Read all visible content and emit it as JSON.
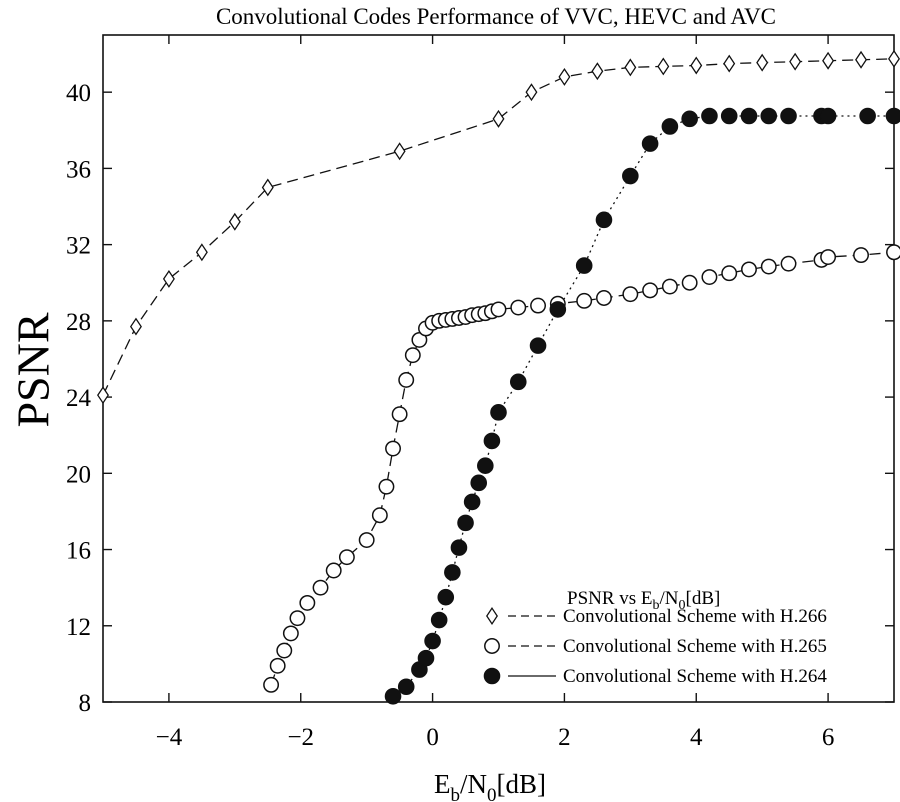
{
  "chart_data": {
    "type": "line",
    "title": "Convolutional Codes Performance of VVC, HEVC and AVC",
    "xlabel": {
      "main": "E",
      "sub1": "b",
      "mid": "/N",
      "sub2": "0",
      "tail": "[dB]"
    },
    "ylabel": "PSNR",
    "xlim": [
      -5,
      7
    ],
    "ylim": [
      8,
      43
    ],
    "xticks": [
      -4,
      -2,
      0,
      2,
      4,
      6
    ],
    "yticks": [
      8,
      12,
      16,
      20,
      24,
      28,
      32,
      36,
      40
    ],
    "legend": {
      "title": {
        "main": "PSNR vs E",
        "sub1": "b",
        "mid": "/N",
        "sub2": "0",
        "tail": "[dB]"
      },
      "position": "bottom-right"
    },
    "series": [
      {
        "name": "Convolutional Scheme with H.266",
        "marker": "diamond",
        "line": "dashed",
        "x": [
          -5.0,
          -4.5,
          -4.0,
          -3.5,
          -3.0,
          -2.5,
          -0.5,
          1.0,
          1.5,
          2.0,
          2.5,
          3.0,
          3.5,
          4.0,
          4.5,
          5.0,
          5.5,
          6.0,
          6.5,
          7.0
        ],
        "y": [
          24.1,
          27.7,
          30.2,
          31.6,
          33.2,
          35.0,
          36.9,
          38.6,
          40.0,
          40.8,
          41.1,
          41.3,
          41.35,
          41.4,
          41.5,
          41.55,
          41.6,
          41.65,
          41.7,
          41.75
        ]
      },
      {
        "name": "Convolutional Scheme with H.265",
        "marker": "circle-open",
        "line": "dashed",
        "x": [
          -2.45,
          -2.35,
          -2.25,
          -2.15,
          -2.05,
          -1.9,
          -1.7,
          -1.5,
          -1.3,
          -1.0,
          -0.8,
          -0.7,
          -0.6,
          -0.5,
          -0.4,
          -0.3,
          -0.2,
          -0.1,
          0.0,
          0.1,
          0.2,
          0.3,
          0.4,
          0.5,
          0.6,
          0.7,
          0.8,
          0.9,
          1.0,
          1.3,
          1.6,
          1.9,
          2.3,
          2.6,
          3.0,
          3.3,
          3.6,
          3.9,
          4.2,
          4.5,
          4.8,
          5.1,
          5.4,
          5.9,
          6.0,
          6.5,
          7.0
        ],
        "y": [
          8.9,
          9.9,
          10.7,
          11.6,
          12.4,
          13.2,
          14.0,
          14.9,
          15.6,
          16.5,
          17.8,
          19.3,
          21.3,
          23.1,
          24.9,
          26.2,
          27.0,
          27.6,
          27.9,
          28.0,
          28.05,
          28.1,
          28.15,
          28.2,
          28.3,
          28.35,
          28.4,
          28.5,
          28.6,
          28.7,
          28.8,
          28.9,
          29.05,
          29.2,
          29.4,
          29.6,
          29.8,
          30.0,
          30.3,
          30.5,
          30.7,
          30.85,
          31.0,
          31.2,
          31.35,
          31.45,
          31.6
        ]
      },
      {
        "name": "Convolutional Scheme with H.264",
        "marker": "circle-filled",
        "line": "dotted",
        "x": [
          -0.6,
          -0.4,
          -0.2,
          -0.1,
          0.0,
          0.1,
          0.2,
          0.3,
          0.4,
          0.5,
          0.6,
          0.7,
          0.8,
          0.9,
          1.0,
          1.3,
          1.6,
          1.9,
          2.3,
          2.6,
          3.0,
          3.3,
          3.6,
          3.9,
          4.2,
          4.5,
          4.8,
          5.1,
          5.4,
          5.9,
          6.0,
          6.6,
          7.0
        ],
        "y": [
          8.3,
          8.8,
          9.7,
          10.3,
          11.2,
          12.3,
          13.5,
          14.8,
          16.1,
          17.4,
          18.5,
          19.5,
          20.4,
          21.7,
          23.2,
          24.8,
          26.7,
          28.6,
          30.9,
          33.3,
          35.6,
          37.3,
          38.2,
          38.6,
          38.75,
          38.75,
          38.75,
          38.75,
          38.75,
          38.75,
          38.75,
          38.75,
          38.75
        ]
      }
    ]
  }
}
